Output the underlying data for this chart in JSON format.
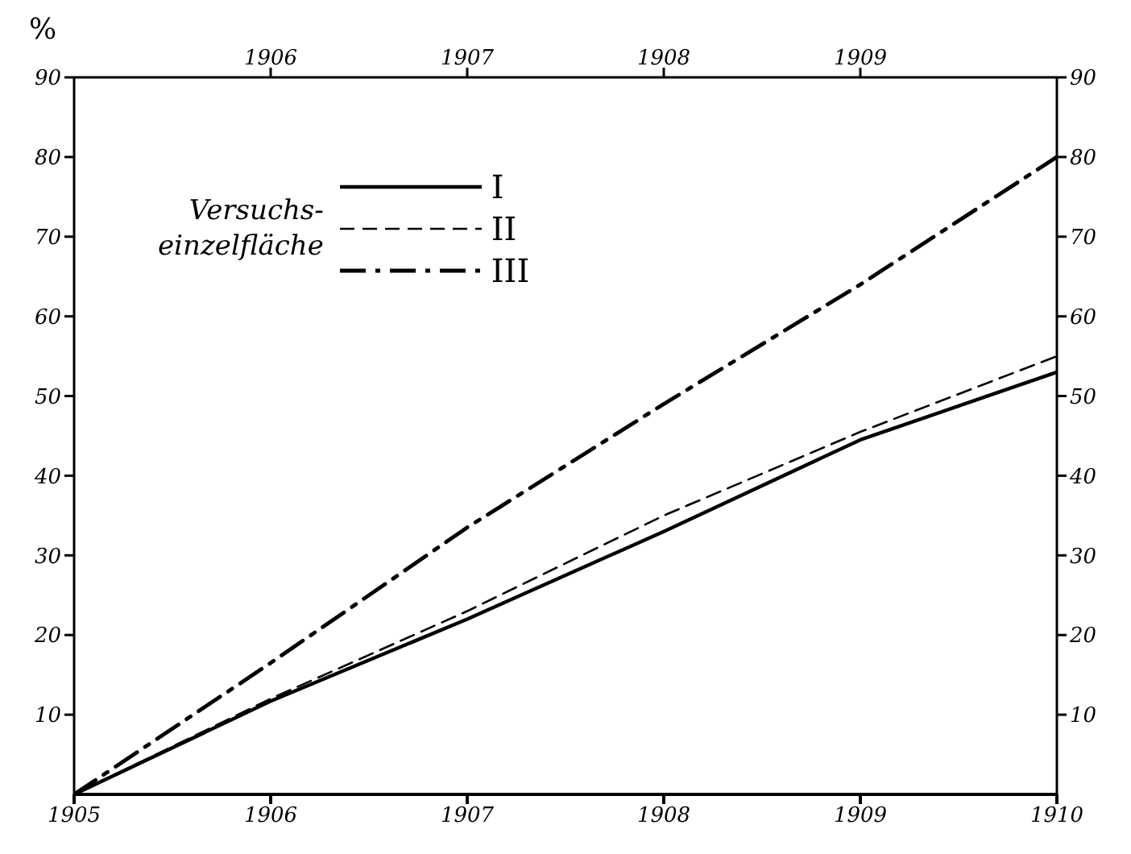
{
  "chart_data": {
    "type": "line",
    "ylabel": "%",
    "legend_title": "Versuchs-\neinzelfläche",
    "x": [
      1905,
      1906,
      1907,
      1908,
      1909,
      1910
    ],
    "series": [
      {
        "name": "I",
        "color": "#000000",
        "line_style": "solid",
        "values": [
          0,
          11.7,
          22,
          33,
          44.5,
          53
        ]
      },
      {
        "name": "II",
        "color": "#000000",
        "line_style": "dashed",
        "values": [
          0,
          12,
          23,
          35,
          45.5,
          55
        ]
      },
      {
        "name": "III",
        "color": "#000000",
        "line_style": "dashdot",
        "values": [
          0,
          16.5,
          33.5,
          49,
          64,
          80
        ]
      }
    ],
    "xlim": [
      1905,
      1910
    ],
    "xticks": [
      1905,
      1906,
      1907,
      1908,
      1909,
      1910
    ],
    "x2lim": [
      1905,
      1910
    ],
    "x2ticks": [
      1906,
      1907,
      1908,
      1909
    ],
    "ylim": [
      0,
      90
    ],
    "yticks": [
      10,
      20,
      30,
      40,
      50,
      60,
      70,
      80,
      90
    ],
    "y2lim": [
      0,
      90
    ],
    "y2ticks": [
      10,
      20,
      30,
      40,
      50,
      60,
      70,
      80,
      90
    ],
    "legend": "top left",
    "marker": "none"
  }
}
